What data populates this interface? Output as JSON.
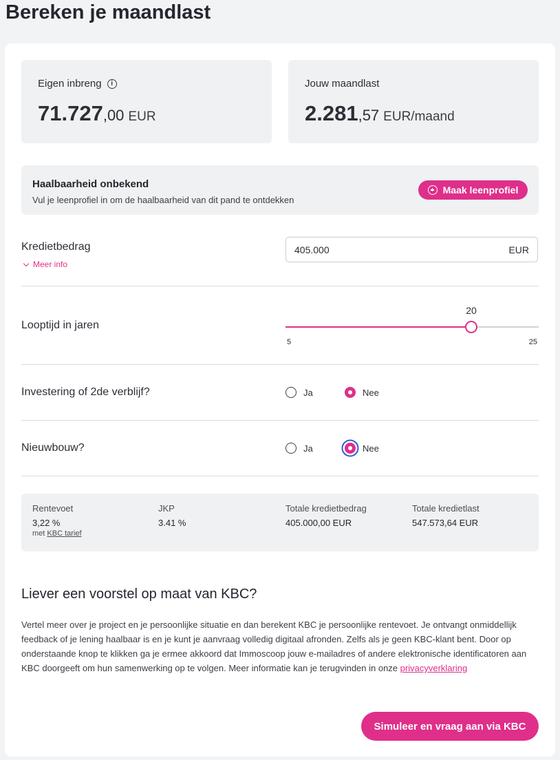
{
  "page": {
    "title": "Bereken je maandlast"
  },
  "tiles": {
    "eigen_inbreng": {
      "label": "Eigen inbreng",
      "whole": "71.727",
      "decimals": ",00",
      "unit": "EUR",
      "icon": "info-icon"
    },
    "maandlast": {
      "label": "Jouw maandlast",
      "whole": "2.281",
      "decimals": ",57",
      "unit": "EUR/maand"
    }
  },
  "feasibility": {
    "title": "Haalbaarheid onbekend",
    "subtitle": "Vul je leenprofiel in om de haalbaarheid van dit pand te ontdekken",
    "button_label": "Maak leenprofiel"
  },
  "credit": {
    "label": "Kredietbedrag",
    "more_info": "Meer info",
    "value": "405.000",
    "unit": "EUR"
  },
  "term": {
    "label": "Looptijd in jaren",
    "value": 20,
    "min": 5,
    "max": 25
  },
  "investment": {
    "label": "Investering of 2de verblijf?",
    "options": [
      "Ja",
      "Nee"
    ],
    "selected": "Nee"
  },
  "newbuild": {
    "label": "Nieuwbouw?",
    "options": [
      "Ja",
      "Nee"
    ],
    "selected": "Nee"
  },
  "summary": {
    "rate": {
      "label": "Rentevoet",
      "value": "3,22 %",
      "note_prefix": "met",
      "note_link": "KBC tarief"
    },
    "jkp": {
      "label": "JKP",
      "value": "3.41 %"
    },
    "total_credit": {
      "label": "Totale kredietbedrag",
      "value": "405.000,00 EUR"
    },
    "total_cost": {
      "label": "Totale kredietlast",
      "value": "547.573,64 EUR"
    }
  },
  "offer": {
    "title": "Liever een voorstel op maat van KBC?",
    "text": "Vertel meer over je project en je persoonlijke situatie en dan berekent KBC je persoonlijke rentevoet. Je ontvangt onmiddellijk feedback of je lening haalbaar is en je kunt je aanvraag volledig digitaal afronden. Zelfs als je geen KBC-klant bent. Door op onderstaande knop te klikken ga je ermee akkoord dat Immoscoop jouw e-mailadres of andere elektronische identificatoren aan KBC doorgeeft om hun samenwerking op te volgen. Meer informatie kan je terugvinden in onze",
    "link": "privacyverklaring",
    "button_label": "Simuleer en vraag aan via KBC"
  },
  "colors": {
    "accent": "#df2f8a",
    "focus": "#2e5bd8"
  }
}
